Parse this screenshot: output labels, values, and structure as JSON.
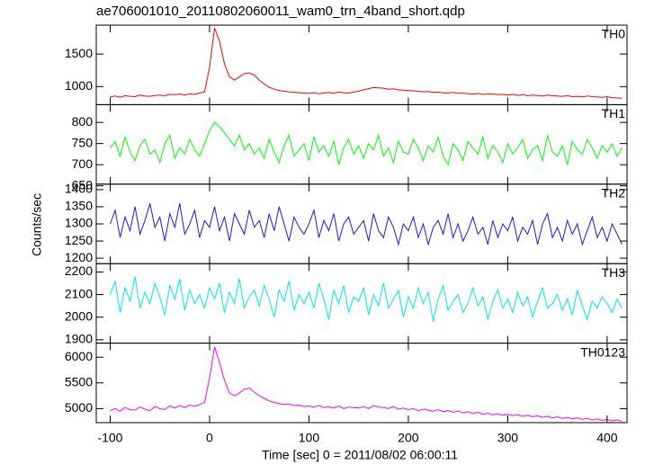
{
  "chart_data": {
    "type": "line",
    "title": "ae706001010_20110802060011_wam0_trn_4band_short.qdp",
    "xlabel": "Time [sec] 0 = 2011/08/02 06:00:11",
    "ylabel": "Counts/sec",
    "xlim": [
      -114,
      420
    ],
    "xticks": [
      -100,
      0,
      100,
      200,
      300,
      400
    ],
    "x": [
      -100,
      -95,
      -90,
      -85,
      -80,
      -75,
      -70,
      -65,
      -60,
      -55,
      -50,
      -45,
      -40,
      -35,
      -30,
      -25,
      -20,
      -15,
      -10,
      -5,
      0,
      5,
      10,
      15,
      20,
      25,
      30,
      35,
      40,
      45,
      50,
      55,
      60,
      65,
      70,
      75,
      80,
      85,
      90,
      95,
      100,
      105,
      110,
      115,
      120,
      125,
      130,
      135,
      140,
      145,
      150,
      155,
      160,
      165,
      170,
      175,
      180,
      185,
      190,
      195,
      200,
      205,
      210,
      215,
      220,
      225,
      230,
      235,
      240,
      245,
      250,
      255,
      260,
      265,
      270,
      275,
      280,
      285,
      290,
      295,
      300,
      305,
      310,
      315,
      320,
      325,
      330,
      335,
      340,
      345,
      350,
      355,
      360,
      365,
      370,
      375,
      380,
      385,
      390,
      395,
      400,
      405,
      410,
      415
    ],
    "series": [
      {
        "name": "TH0",
        "color": "#ff0000",
        "ylim": [
          722,
          1944
        ],
        "yticks": [
          1000,
          1500
        ],
        "values": [
          840,
          855,
          835,
          860,
          850,
          845,
          870,
          855,
          850,
          865,
          870,
          860,
          880,
          875,
          885,
          870,
          890,
          880,
          900,
          920,
          1300,
          1900,
          1700,
          1350,
          1150,
          1100,
          1150,
          1200,
          1210,
          1180,
          1100,
          1040,
          990,
          960,
          940,
          930,
          920,
          915,
          905,
          900,
          895,
          905,
          890,
          900,
          910,
          895,
          920,
          905,
          900,
          915,
          930,
          950,
          970,
          985,
          980,
          975,
          960,
          965,
          950,
          945,
          940,
          935,
          930,
          920,
          925,
          910,
          915,
          905,
          900,
          910,
          895,
          900,
          890,
          885,
          895,
          880,
          890,
          885,
          875,
          880,
          870,
          880,
          865,
          875,
          860,
          870,
          865,
          855,
          870,
          860,
          855,
          850,
          860,
          845,
          850,
          840,
          855,
          845,
          840,
          835,
          845,
          830,
          825,
          820
        ]
      },
      {
        "name": "TH1",
        "color": "#00ff00",
        "ylim": [
          654,
          842
        ],
        "yticks": [
          650,
          700,
          750,
          800
        ],
        "values": [
          740,
          755,
          720,
          765,
          730,
          710,
          745,
          760,
          725,
          735,
          705,
          750,
          770,
          715,
          740,
          725,
          760,
          735,
          720,
          750,
          780,
          800,
          790,
          775,
          760,
          745,
          770,
          735,
          750,
          725,
          740,
          715,
          760,
          730,
          705,
          745,
          770,
          720,
          735,
          750,
          710,
          765,
          730,
          745,
          720,
          755,
          700,
          740,
          760,
          725,
          745,
          715,
          750,
          735,
          770,
          720,
          740,
          705,
          755,
          730,
          725,
          760,
          740,
          710,
          745,
          730,
          765,
          720,
          700,
          750,
          735,
          710,
          755,
          740,
          725,
          765,
          715,
          745,
          730,
          705,
          750,
          725,
          740,
          760,
          715,
          735,
          745,
          710,
          770,
          730,
          720,
          745,
          700,
          755,
          735,
          725,
          760,
          740,
          715,
          745,
          730,
          750,
          720,
          740
        ]
      },
      {
        "name": "TH2",
        "color": "#1a1ae6",
        "ylim": [
          1184,
          1416
        ],
        "yticks": [
          1200,
          1250,
          1300,
          1350,
          1400
        ],
        "values": [
          1300,
          1340,
          1260,
          1320,
          1280,
          1350,
          1270,
          1310,
          1360,
          1290,
          1320,
          1250,
          1330,
          1290,
          1360,
          1270,
          1300,
          1340,
          1260,
          1310,
          1290,
          1350,
          1280,
          1320,
          1250,
          1330,
          1300,
          1270,
          1340,
          1290,
          1310,
          1260,
          1330,
          1280,
          1350,
          1300,
          1250,
          1320,
          1290,
          1270,
          1300,
          1340,
          1260,
          1310,
          1280,
          1330,
          1250,
          1300,
          1320,
          1270,
          1290,
          1310,
          1250,
          1330,
          1280,
          1260,
          1320,
          1290,
          1240,
          1300,
          1280,
          1320,
          1260,
          1300,
          1240,
          1290,
          1310,
          1270,
          1330,
          1260,
          1300,
          1250,
          1280,
          1320,
          1270,
          1290,
          1240,
          1310,
          1260,
          1300,
          1280,
          1320,
          1250,
          1290,
          1270,
          1310,
          1240,
          1300,
          1330,
          1260,
          1290,
          1250,
          1310,
          1270,
          1300,
          1240,
          1280,
          1320,
          1260,
          1290,
          1250,
          1300,
          1270,
          1240
        ]
      },
      {
        "name": "TH3",
        "color": "#00e8e8",
        "ylim": [
          1885,
          2237
        ],
        "yticks": [
          1900,
          2000,
          2100,
          2200
        ],
        "values": [
          2100,
          2160,
          2020,
          2130,
          2070,
          2180,
          2040,
          2110,
          2060,
          2150,
          2090,
          2010,
          2140,
          2080,
          2170,
          2030,
          2120,
          2060,
          2100,
          2040,
          2130,
          2080,
          2150,
          2020,
          2110,
          2060,
          2170,
          2040,
          2090,
          2120,
          2050,
          2140,
          2080,
          2000,
          2120,
          2070,
          2160,
          2030,
          2100,
          2060,
          2110,
          2040,
          2150,
          2080,
          1990,
          2120,
          2060,
          2140,
          2020,
          2090,
          2070,
          2130,
          2010,
          2100,
          2050,
          2150,
          2040,
          2080,
          2120,
          2000,
          2090,
          2040,
          2130,
          2060,
          2110,
          1980,
          2080,
          2140,
          2030,
          2070,
          2100,
          2020,
          2060,
          2130,
          2050,
          2090,
          1990,
          2070,
          2120,
          2040,
          2080,
          2020,
          2110,
          2050,
          2090,
          2000,
          2070,
          2130,
          2040,
          2060,
          2100,
          2030,
          2080,
          2010,
          2120,
          2050,
          1990,
          2070,
          2040,
          2090,
          2060,
          2020,
          2080,
          2040
        ]
      },
      {
        "name": "TH0123",
        "color": "#ff00ff",
        "ylim": [
          4727,
          6273
        ],
        "yticks": [
          5000,
          5500,
          6000
        ],
        "values": [
          4960,
          5000,
          4950,
          5020,
          4980,
          4970,
          5030,
          4990,
          4960,
          5040,
          5000,
          4980,
          5050,
          5010,
          5060,
          5020,
          5070,
          5040,
          5080,
          5120,
          5600,
          6200,
          5900,
          5550,
          5300,
          5250,
          5300,
          5380,
          5400,
          5320,
          5250,
          5200,
          5150,
          5120,
          5100,
          5080,
          5090,
          5060,
          5070,
          5040,
          5050,
          5030,
          5060,
          5020,
          5040,
          5010,
          5050,
          5000,
          5030,
          5020,
          5010,
          5040,
          5000,
          5060,
          5030,
          5020,
          5000,
          5040,
          4990,
          5010,
          4980,
          5000,
          4960,
          4990,
          4970,
          4950,
          4980,
          4940,
          4960,
          4930,
          4950,
          4920,
          4940,
          4900,
          4930,
          4890,
          4910,
          4880,
          4900,
          4870,
          4890,
          4860,
          4880,
          4850,
          4870,
          4840,
          4860,
          4830,
          4850,
          4820,
          4840,
          4810,
          4830,
          4800,
          4820,
          4790,
          4810,
          4780,
          4800,
          4770,
          4790,
          4760,
          4780,
          4750
        ]
      }
    ]
  }
}
